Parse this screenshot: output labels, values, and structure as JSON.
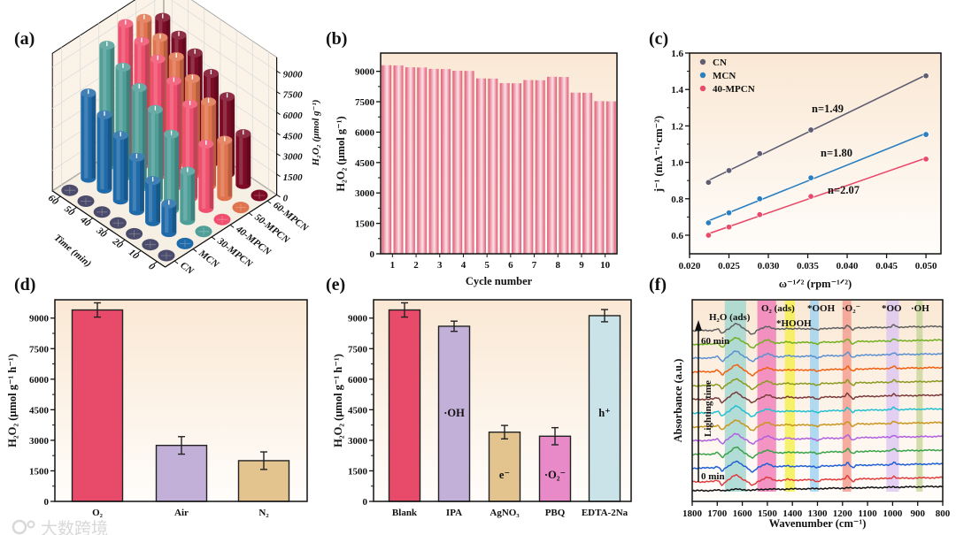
{
  "panel_labels": {
    "a": "(a)",
    "b": "(b)",
    "c": "(c)",
    "d": "(d)",
    "e": "(e)",
    "f": "(f)"
  },
  "watermark": "大数跨境",
  "chart_data": [
    {
      "panel": "a",
      "type": "bar3d",
      "xlabel": "Time (min)",
      "zlabel": "H₂O₂ (μmol g⁻¹)",
      "times": [
        "0",
        "10",
        "20",
        "30",
        "40",
        "50",
        "60"
      ],
      "samples": [
        "CN",
        "MCN",
        "30-MPCN",
        "40-MPCN",
        "50-MPCN",
        "60-MPCN"
      ],
      "colors": [
        "#4b4b6b",
        "#1f6aa8",
        "#4f9e98",
        "#f0506e",
        "#e0744e",
        "#7c0b26"
      ],
      "zticks": [
        "0",
        "1500",
        "3000",
        "4500",
        "6000",
        "7500",
        "9000"
      ],
      "values": [
        [
          0,
          0,
          0,
          0,
          0,
          0,
          0
        ],
        [
          0,
          2100,
          3000,
          3900,
          4700,
          5400,
          6200
        ],
        [
          0,
          3600,
          5500,
          6500,
          7300,
          8000,
          8800
        ],
        [
          0,
          4700,
          6800,
          7700,
          8500,
          9000,
          9500
        ],
        [
          0,
          4100,
          6100,
          7000,
          7800,
          8400,
          9000
        ],
        [
          0,
          3700,
          5600,
          6500,
          7200,
          7700,
          8200
        ]
      ]
    },
    {
      "panel": "b",
      "type": "bar",
      "xlabel": "Cycle number",
      "ylabel": "H₂O₂ (μmol g⁻¹)",
      "categories": [
        "1",
        "2",
        "3",
        "4",
        "5",
        "6",
        "7",
        "8",
        "9",
        "10"
      ],
      "values": [
        [
          9300,
          9290
        ],
        [
          9200,
          9190
        ],
        [
          9120,
          9110
        ],
        [
          9030,
          9020
        ],
        [
          8650,
          8640
        ],
        [
          8420,
          8410
        ],
        [
          8570,
          8560
        ],
        [
          8730,
          8720
        ],
        [
          7950,
          7940
        ],
        [
          7530,
          7520
        ]
      ],
      "yticks": [
        "0",
        "1500",
        "3000",
        "4500",
        "6000",
        "7500",
        "9000"
      ],
      "ylim": [
        0,
        9900
      ],
      "color": "#e05a74"
    },
    {
      "panel": "c",
      "type": "scatter",
      "xlabel": "ω⁻¹ᐟ² (rpm⁻¹ᐟ²)",
      "ylabel": "j⁻¹ (mA⁻¹·cm⁻²)",
      "xlim": [
        0.02,
        0.0519
      ],
      "ylim": [
        0.498,
        1.6
      ],
      "xticks": [
        "0.020",
        "0.025",
        "0.030",
        "0.035",
        "0.040",
        "0.045",
        "0.050"
      ],
      "yticks": [
        "0.6",
        "0.8",
        "1.0",
        "1.2",
        "1.4",
        "1.6"
      ],
      "x": [
        0.0224,
        0.025,
        0.0289,
        0.0354,
        0.05
      ],
      "legend": "top-left",
      "series": [
        {
          "name": "CN",
          "color": "#5f5d72",
          "values": [
            0.89,
            0.955,
            1.048,
            1.178,
            1.475
          ],
          "annotation": "n=1.49"
        },
        {
          "name": "MCN",
          "color": "#2a7fc0",
          "values": [
            0.668,
            0.723,
            0.8,
            0.915,
            1.153
          ],
          "annotation": "n=1.80"
        },
        {
          "name": "40-MPCN",
          "color": "#e84a6a",
          "values": [
            0.6,
            0.645,
            0.713,
            0.813,
            1.018
          ],
          "annotation": "n=2.07"
        }
      ]
    },
    {
      "panel": "d",
      "type": "bar",
      "ylabel": "H₂O₂ (μmol g⁻¹ h⁻¹)",
      "ylim": [
        0,
        9900
      ],
      "yticks": [
        "0",
        "1500",
        "3000",
        "4500",
        "6000",
        "7500",
        "9000"
      ],
      "bars": [
        {
          "category": "O₂",
          "value": 9400,
          "error": 350,
          "color": "#e84a6a"
        },
        {
          "category": "Air",
          "value": 2750,
          "error": 430,
          "color": "#c3b0d8"
        },
        {
          "category": "N₂",
          "value": 2000,
          "error": 430,
          "color": "#e3c48f"
        }
      ]
    },
    {
      "panel": "e",
      "type": "bar",
      "ylabel": "H₂O₂ (μmol g⁻¹ h⁻¹)",
      "ylim": [
        0,
        9900
      ],
      "yticks": [
        "0",
        "1500",
        "3000",
        "4500",
        "6000",
        "7500",
        "9000"
      ],
      "bars": [
        {
          "category": "Blank",
          "value": 9400,
          "error": 350,
          "color": "#e84a6a",
          "annotation": ""
        },
        {
          "category": "IPA",
          "value": 8600,
          "error": 250,
          "color": "#c3b0d8",
          "annotation": "·OH"
        },
        {
          "category": "AgNO₃",
          "value": 3400,
          "error": 330,
          "color": "#e3c48f",
          "annotation": "e⁻"
        },
        {
          "category": "PBQ",
          "value": 3200,
          "error": 420,
          "color": "#e88ac8",
          "annotation": "·O₂⁻"
        },
        {
          "category": "EDTA-2Na",
          "value": 9120,
          "error": 300,
          "color": "#c9e3e8",
          "annotation": "h⁺"
        }
      ]
    },
    {
      "panel": "f",
      "type": "line",
      "xlabel": "Wavenumber (cm⁻¹)",
      "ylabel": "Absorbance (a.u.)",
      "xlim": [
        1800,
        800
      ],
      "xticks": [
        "1800",
        "1700",
        "1600",
        "1500",
        "1400",
        "1300",
        "1200",
        "1100",
        "1000",
        "900",
        "800"
      ],
      "arrow_label": "Lighting time",
      "time_labels": {
        "start": "0 min",
        "end": "60 min"
      },
      "baseline_color": "#111111",
      "curve_colors": [
        "#e03c3c",
        "#1f5fd6",
        "#3aa34a",
        "#b060e0",
        "#c8961e",
        "#22c0d0",
        "#7a3a3a",
        "#8a9a20",
        "#f06010",
        "#5a90d0",
        "#70b020",
        "#606060"
      ],
      "features": [
        {
          "wavenumber": 1700,
          "width": 10,
          "amplitude": 0.3
        },
        {
          "wavenumber": 1680,
          "width": 10,
          "amplitude": -0.8
        },
        {
          "wavenumber": 1625,
          "width": 24,
          "amplitude": 1.4
        },
        {
          "wavenumber": 1560,
          "width": 16,
          "amplitude": -1.0
        },
        {
          "wavenumber": 1500,
          "width": 20,
          "amplitude": 0.7
        },
        {
          "wavenumber": 1420,
          "width": 12,
          "amplitude": 0.2
        },
        {
          "wavenumber": 1300,
          "width": 12,
          "amplitude": -0.4
        },
        {
          "wavenumber": 1180,
          "width": 8,
          "amplitude": 0.7
        },
        {
          "wavenumber": 1158,
          "width": 8,
          "amplitude": -0.5
        },
        {
          "wavenumber": 995,
          "width": 8,
          "amplitude": 0.5
        }
      ],
      "bands": [
        {
          "label": "H₂O (ads)",
          "range": [
            1670,
            1585
          ],
          "color": "#9fd6cf"
        },
        {
          "label": "O₂ (ads)",
          "range": [
            1540,
            1465
          ],
          "color": "#f07ab8"
        },
        {
          "label": "*HOOH",
          "range": [
            1430,
            1390
          ],
          "color": "#f5f04a"
        },
        {
          "label": "*OOH",
          "range": [
            1330,
            1295
          ],
          "color": "#9cd2f2"
        },
        {
          "label": "·O₂⁻",
          "range": [
            1200,
            1165
          ],
          "color": "#f39a8c"
        },
        {
          "label": "*OO",
          "range": [
            1025,
            975
          ],
          "color": "#dcc6f2"
        },
        {
          "label": "·OH",
          "range": [
            905,
            880
          ],
          "color": "#c7d69a"
        }
      ]
    }
  ]
}
